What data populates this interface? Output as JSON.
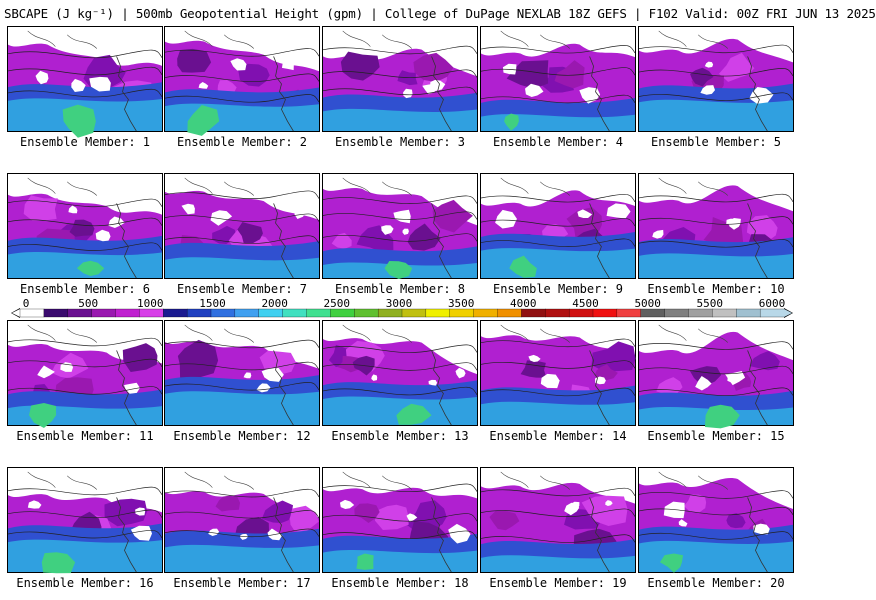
{
  "title": "SBCAPE (J kg⁻¹) | 500mb Geopotential Height (gpm) | College of DuPage NEXLAB 18Z GEFS | F102 Valid: 00Z FRI JUN 13 2025",
  "panels": [
    {
      "label": "Ensemble Member: 1"
    },
    {
      "label": "Ensemble Member: 2"
    },
    {
      "label": "Ensemble Member: 3"
    },
    {
      "label": "Ensemble Member: 4"
    },
    {
      "label": "Ensemble Member: 5"
    },
    {
      "label": "Ensemble Member: 6"
    },
    {
      "label": "Ensemble Member: 7"
    },
    {
      "label": "Ensemble Member: 8"
    },
    {
      "label": "Ensemble Member: 9"
    },
    {
      "label": "Ensemble Member: 10"
    },
    {
      "label": "Ensemble Member: 11"
    },
    {
      "label": "Ensemble Member: 12"
    },
    {
      "label": "Ensemble Member: 13"
    },
    {
      "label": "Ensemble Member: 14"
    },
    {
      "label": "Ensemble Member: 15"
    },
    {
      "label": "Ensemble Member: 16"
    },
    {
      "label": "Ensemble Member: 17"
    },
    {
      "label": "Ensemble Member: 18"
    },
    {
      "label": "Ensemble Member: 19"
    },
    {
      "label": "Ensemble Member: 20"
    }
  ],
  "colorbar": {
    "ticks": [
      "0",
      "500",
      "1000",
      "1500",
      "2000",
      "2500",
      "3000",
      "3500",
      "4000",
      "4500",
      "5000",
      "5500",
      "6000"
    ],
    "colors": [
      "#ffffff",
      "#3a0a6e",
      "#6a1090",
      "#9a18b0",
      "#c020d0",
      "#d840e8",
      "#1a1a90",
      "#2040c0",
      "#3070e0",
      "#40a0f0",
      "#40d0f0",
      "#40e0c0",
      "#40e090",
      "#40d040",
      "#60c030",
      "#90b020",
      "#c0c010",
      "#f0f000",
      "#f0d000",
      "#f0b000",
      "#f09000",
      "#901010",
      "#b01010",
      "#d01010",
      "#f01010",
      "#f04040",
      "#606060",
      "#808080",
      "#a0a0a0",
      "#c0c0c0",
      "#a0c0d0",
      "#b8d8e8"
    ]
  }
}
